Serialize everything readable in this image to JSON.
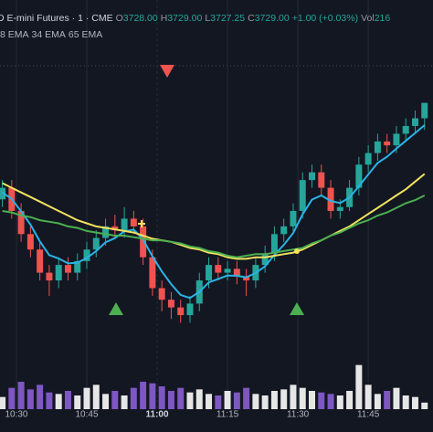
{
  "chart_data": {
    "type": "candlestick",
    "title": "D E-mini Futures · 1 · CME",
    "ohlc_legend": [
      {
        "name": "O",
        "value": 3728,
        "label": "3728.00"
      },
      {
        "name": "H",
        "value": 3729,
        "label": "3729.00"
      },
      {
        "name": "L",
        "value": 3727.25,
        "label": "3727.25"
      },
      {
        "name": "C",
        "value": 3729,
        "label": "3729.00"
      }
    ],
    "change": "+1.00 (+0.03%)",
    "volume_legend": {
      "name": "Vol",
      "value": 216
    },
    "x": [
      -3,
      -1,
      1,
      3,
      5,
      7,
      9,
      11,
      13,
      15,
      17,
      19,
      21,
      23,
      25,
      27,
      29,
      31,
      33,
      35,
      37,
      39,
      41,
      43,
      45,
      47,
      49,
      51,
      53,
      55,
      57,
      59,
      61,
      63,
      65,
      67,
      69,
      71,
      73,
      75,
      77,
      79,
      81,
      83,
      85,
      87
    ],
    "open": [
      3722.75,
      3723.5,
      3722,
      3720.5,
      3719.5,
      3718,
      3717.5,
      3718.5,
      3718,
      3718.75,
      3719.5,
      3720.25,
      3721,
      3720.75,
      3721.5,
      3721,
      3719,
      3717,
      3716.25,
      3715.75,
      3715.25,
      3716,
      3717.5,
      3718.5,
      3718,
      3718.25,
      3717.75,
      3717.5,
      3718.5,
      3719.25,
      3720.5,
      3721,
      3722,
      3724,
      3724.5,
      3723.5,
      3722,
      3722.25,
      3723.5,
      3725,
      3725.75,
      3726.5,
      3726.25,
      3727,
      3727.5,
      3728
    ],
    "high": [
      3724,
      3724,
      3722.5,
      3721,
      3720,
      3718.5,
      3719,
      3719,
      3719.25,
      3720,
      3720.75,
      3721.5,
      3721.75,
      3722.25,
      3722,
      3721.5,
      3719.5,
      3717.5,
      3716.75,
      3716.25,
      3716.5,
      3718,
      3719,
      3719,
      3718.75,
      3718.75,
      3718.25,
      3719,
      3719.75,
      3721,
      3721.5,
      3722.5,
      3724.5,
      3725,
      3725,
      3724,
      3722.75,
      3724,
      3725.5,
      3726.25,
      3727,
      3727,
      3727.5,
      3728,
      3728.5,
      3729
    ],
    "low": [
      3722.25,
      3721.5,
      3720,
      3719,
      3717.5,
      3716.5,
      3717,
      3717.5,
      3717.5,
      3718.25,
      3719,
      3719.75,
      3720.25,
      3720.25,
      3720.5,
      3718.5,
      3716.5,
      3715.5,
      3715,
      3714.75,
      3714.75,
      3715.5,
      3717,
      3717.5,
      3717.5,
      3717.25,
      3716.5,
      3717,
      3718,
      3718.75,
      3720,
      3720.5,
      3721.5,
      3723.5,
      3723,
      3721.5,
      3721.5,
      3722,
      3723,
      3724.5,
      3725.25,
      3725.75,
      3725.75,
      3726.5,
      3727,
      3727.25
    ],
    "close": [
      3723.5,
      3722,
      3720.5,
      3719.5,
      3718,
      3717.5,
      3718.5,
      3718,
      3718.75,
      3719.5,
      3720.25,
      3721,
      3720.75,
      3721.5,
      3721,
      3719,
      3717,
      3716.25,
      3715.75,
      3715.25,
      3716,
      3717.5,
      3718.5,
      3718,
      3718.25,
      3717.75,
      3717.5,
      3718.5,
      3719.25,
      3720.5,
      3721,
      3722,
      3724,
      3724.5,
      3723.5,
      3722,
      3722.25,
      3723.5,
      3725,
      3725.75,
      3726.5,
      3726.25,
      3727,
      3727.5,
      3728,
      3729
    ],
    "up_color": "#26a69a",
    "down_color": "#ef5350",
    "series": [
      {
        "name": "8 EMA",
        "color": "#2bb3e6",
        "values": [
          3723.2,
          3722.78,
          3721.98,
          3721.11,
          3720.02,
          3719.14,
          3718.92,
          3718.6,
          3718.65,
          3718.95,
          3719.4,
          3719.96,
          3720.24,
          3720.68,
          3720.79,
          3720.16,
          3719.06,
          3718.08,
          3717.26,
          3716.56,
          3716.36,
          3716.76,
          3717.37,
          3717.59,
          3717.82,
          3717.8,
          3717.7,
          3717.98,
          3718.42,
          3719.15,
          3719.8,
          3720.57,
          3721.77,
          3722.73,
          3723,
          3722.65,
          3722.51,
          3722.86,
          3723.61,
          3724.36,
          3725.11,
          3725.51,
          3726.03,
          3726.54,
          3727.05,
          3727.56
        ]
      },
      {
        "name": "34 EMA",
        "color": "#f2e35e",
        "values": [
          3723.8,
          3723.5,
          3723.2,
          3722.9,
          3722.6,
          3722.3,
          3722.0,
          3721.7,
          3721.4,
          3721.2,
          3721.0,
          3720.9,
          3720.8,
          3720.7,
          3720.6,
          3720.4,
          3720.2,
          3720.1,
          3720.0,
          3719.8,
          3719.6,
          3719.5,
          3719.3,
          3719.2,
          3719.0,
          3718.9,
          3718.9,
          3719.0,
          3719.0,
          3719.1,
          3719.2,
          3719.3,
          3719.5,
          3719.8,
          3720.1,
          3720.4,
          3720.7,
          3721.0,
          3721.4,
          3721.8,
          3722.2,
          3722.6,
          3723.0,
          3723.4,
          3723.9,
          3724.4
        ]
      },
      {
        "name": "65 EMA",
        "color": "#4caf50",
        "values": [
          3722.0,
          3721.9,
          3721.7,
          3721.6,
          3721.4,
          3721.3,
          3721.2,
          3721.0,
          3720.9,
          3720.7,
          3720.6,
          3720.5,
          3720.4,
          3720.4,
          3720.3,
          3720.2,
          3720.1,
          3720.1,
          3720.0,
          3719.9,
          3719.7,
          3719.6,
          3719.4,
          3719.3,
          3719.1,
          3719.0,
          3719.1,
          3719.2,
          3719.2,
          3719.3,
          3719.4,
          3719.5,
          3719.6,
          3719.9,
          3720.1,
          3720.4,
          3720.6,
          3720.9,
          3721.2,
          3721.4,
          3721.7,
          3721.9,
          3722.2,
          3722.5,
          3722.7,
          3723.0
        ]
      }
    ],
    "volume": {
      "axis": "y2",
      "up_color": "#e6e6e6",
      "down_color": "#7e57c2",
      "values": [
        400,
        700,
        900,
        650,
        800,
        550,
        500,
        600,
        450,
        700,
        800,
        500,
        600,
        450,
        700,
        900,
        850,
        750,
        600,
        700,
        550,
        650,
        500,
        450,
        600,
        550,
        700,
        500,
        450,
        600,
        650,
        800,
        700,
        600,
        550,
        500,
        450,
        600,
        1450,
        800,
        500,
        600,
        700,
        450,
        400,
        216
      ]
    },
    "xlim": [
      -3.5,
      88.8
    ],
    "xticks": [
      {
        "value": 0,
        "label": "10:30"
      },
      {
        "value": 15,
        "label": "10:45"
      },
      {
        "value": 30,
        "label": "11:00"
      },
      {
        "value": 45,
        "label": "11:15"
      },
      {
        "value": 60,
        "label": "11:30"
      },
      {
        "value": 75,
        "label": "11:45"
      }
    ],
    "ylim": [
      3712,
      3733
    ],
    "y2lim": [
      0,
      1500
    ],
    "grid": true
  }
}
